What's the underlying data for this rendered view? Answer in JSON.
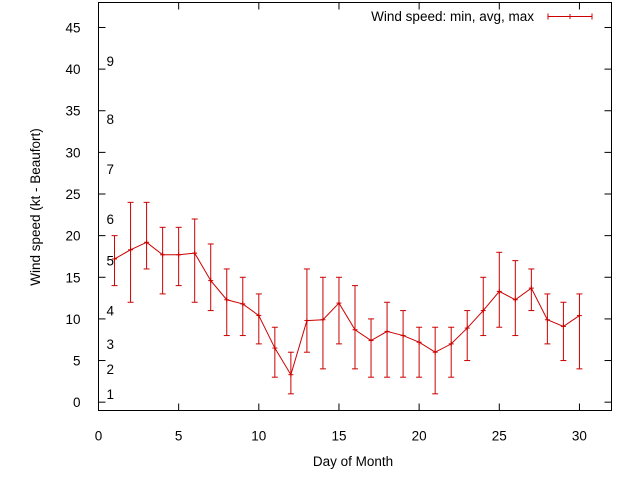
{
  "chart_data": {
    "type": "line",
    "title": "",
    "xlabel": "Day of Month",
    "ylabel": "Wind speed (kt - Beaufort)",
    "xlim": [
      0,
      32
    ],
    "ylim": [
      -1,
      48
    ],
    "xticks": [
      0,
      5,
      10,
      15,
      20,
      25,
      30
    ],
    "yticks": [
      0,
      5,
      10,
      15,
      20,
      25,
      30,
      35,
      40,
      45
    ],
    "legend_position": "top-right",
    "grid": false,
    "beaufort_scale": [
      {
        "label": "1",
        "value": 1
      },
      {
        "label": "2",
        "value": 4
      },
      {
        "label": "3",
        "value": 7
      },
      {
        "label": "4",
        "value": 11
      },
      {
        "label": "5",
        "value": 17
      },
      {
        "label": "6",
        "value": 22
      },
      {
        "label": "7",
        "value": 28
      },
      {
        "label": "8",
        "value": 34
      },
      {
        "label": "9",
        "value": 41
      }
    ],
    "series": [
      {
        "name": "Wind speed: min, avg, max",
        "color": "#cc0000",
        "x": [
          1,
          2,
          3,
          4,
          5,
          6,
          7,
          8,
          9,
          10,
          11,
          12,
          13,
          14,
          15,
          16,
          17,
          18,
          19,
          20,
          21,
          22,
          23,
          24,
          25,
          26,
          27,
          28,
          29,
          30
        ],
        "avg": [
          17.2,
          18.3,
          19.2,
          17.7,
          17.7,
          17.9,
          14.6,
          12.3,
          11.8,
          10.4,
          6.5,
          3.3,
          9.8,
          9.9,
          11.9,
          8.7,
          7.4,
          8.5,
          8.0,
          7.2,
          6.0,
          7.0,
          8.9,
          11.0,
          13.3,
          12.3,
          13.7,
          9.9,
          9.1,
          10.4
        ],
        "min": [
          14,
          12,
          16,
          13,
          14,
          12,
          11,
          8,
          8,
          7,
          3,
          1,
          6,
          4,
          7,
          4,
          3,
          3,
          3,
          3,
          1,
          3,
          5,
          8,
          9,
          8,
          11,
          7,
          5,
          4
        ],
        "max": [
          20,
          24,
          24,
          21,
          21,
          22,
          19,
          16,
          15,
          13,
          9,
          6,
          16,
          15,
          15,
          14,
          10,
          12,
          11,
          9,
          9,
          9,
          11,
          15,
          18,
          17,
          16,
          13,
          12,
          13
        ]
      }
    ]
  }
}
